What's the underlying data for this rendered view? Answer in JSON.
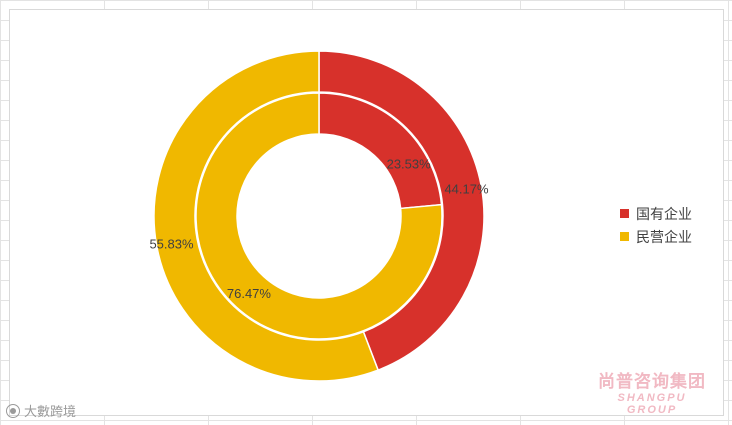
{
  "chart_data": {
    "type": "donut",
    "rings": [
      {
        "ring": "inner",
        "values": [
          23.53,
          76.47
        ],
        "labels": [
          "23.53%",
          "76.47%"
        ]
      },
      {
        "ring": "outer",
        "values": [
          44.17,
          55.83
        ],
        "labels": [
          "44.17%",
          "55.83%"
        ]
      }
    ],
    "legend": {
      "position": "right",
      "entries": [
        {
          "name": "国有企业",
          "color": "#d7312b"
        },
        {
          "name": "民营企业",
          "color": "#f0b800"
        }
      ]
    }
  },
  "watermarks": {
    "right_cn": "尚普咨询集团",
    "right_en": "SHANGPU GROUP",
    "left": "大數跨境"
  }
}
